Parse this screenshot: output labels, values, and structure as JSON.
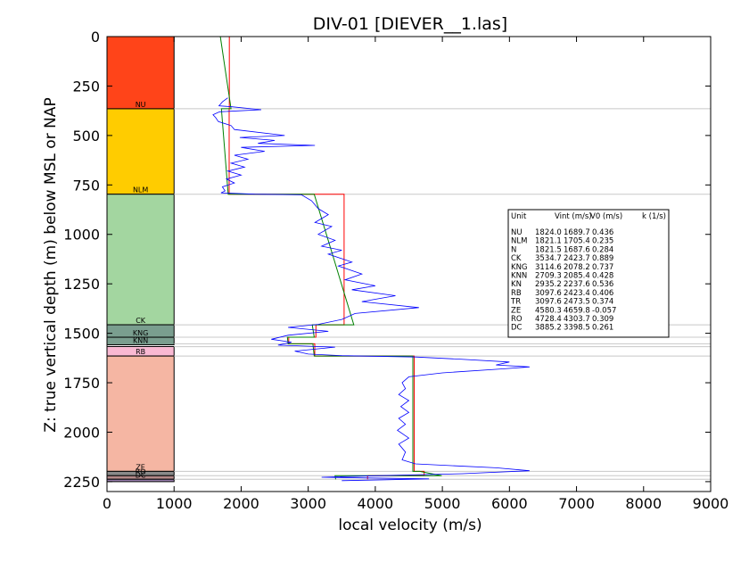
{
  "chart_data": {
    "type": "line",
    "title": "DIV-01 [DIEVER__1.las]",
    "xlabel": "local velocity (m/s)",
    "ylabel": "Z: true vertical depth (m) below MSL or NAP",
    "xlim": [
      0,
      9000
    ],
    "ylim": [
      2300,
      0
    ],
    "y_inverted": true,
    "xticks": [
      0,
      1000,
      2000,
      3000,
      4000,
      5000,
      6000,
      7000,
      8000,
      9000
    ],
    "yticks": [
      0,
      250,
      500,
      750,
      1000,
      1250,
      1500,
      1750,
      2000,
      2250
    ],
    "grid": false,
    "units": [
      {
        "name": "NU",
        "top": 0,
        "base": 365,
        "color": "#ff4419",
        "label": "NU"
      },
      {
        "name": "NLM",
        "top": 365,
        "base": 797,
        "color": "#ffcc00",
        "label": "NLM"
      },
      {
        "name": "N",
        "top": 797,
        "base": 1457,
        "color": "#a3d6a0",
        "label": "CK"
      },
      {
        "name": "CK",
        "top": 1457,
        "base": 1520,
        "color": "#7a9e8f",
        "label": "KNG"
      },
      {
        "name": "KNG",
        "top": 1520,
        "base": 1558,
        "color": "#7a9e8f",
        "label": "KNN"
      },
      {
        "name": "RB",
        "top": 1567,
        "base": 1615,
        "color": "#f9b9d3",
        "label": "RB"
      },
      {
        "name": "TR",
        "top": 1615,
        "base": 2198,
        "color": "#f5b6a3",
        "label": "ZE"
      },
      {
        "name": "ZE",
        "top": 2198,
        "base": 2220,
        "color": "#8a8a8a",
        "label": "RO"
      },
      {
        "name": "RO",
        "top": 2220,
        "base": 2238,
        "color": "#b58a8a",
        "label": "DC"
      },
      {
        "name": "DC",
        "top": 2238,
        "base": 2250,
        "color": "#9b7fb0",
        "label": ""
      }
    ],
    "horizon_depths": [
      365,
      797,
      1457,
      1520,
      1553,
      1568,
      1615,
      2198,
      2220,
      2238
    ],
    "series": [
      {
        "color": "#ff0000",
        "points": [
          [
            1824,
            0
          ],
          [
            1824,
            365
          ],
          [
            1821,
            365
          ],
          [
            1821,
            797
          ],
          [
            3535,
            797
          ],
          [
            3535,
            1457
          ],
          [
            3115,
            1457
          ],
          [
            3115,
            1520
          ],
          [
            2709,
            1520
          ],
          [
            2709,
            1553
          ],
          [
            3098,
            1553
          ],
          [
            3098,
            1615
          ],
          [
            4580,
            1615
          ],
          [
            4580,
            2198
          ],
          [
            4728,
            2198
          ],
          [
            4728,
            2220
          ],
          [
            3885,
            2220
          ],
          [
            3885,
            2238
          ]
        ]
      },
      {
        "color": "#008000",
        "points": [
          [
            1690,
            0
          ],
          [
            1849,
            365
          ],
          [
            1705,
            365
          ],
          [
            1807,
            797
          ],
          [
            3090,
            797
          ],
          [
            3680,
            1457
          ],
          [
            3060,
            1457
          ],
          [
            3090,
            1520
          ],
          [
            2690,
            1520
          ],
          [
            2700,
            1553
          ],
          [
            3070,
            1553
          ],
          [
            3090,
            1615
          ],
          [
            4560,
            1615
          ],
          [
            4560,
            2198
          ],
          [
            4660,
            2198
          ],
          [
            4990,
            2220
          ],
          [
            3400,
            2220
          ],
          [
            3410,
            2238
          ]
        ]
      },
      {
        "color": "#0000ff",
        "points": [
          [
            1800,
            310
          ],
          [
            1720,
            330
          ],
          [
            1670,
            350
          ],
          [
            1860,
            355
          ],
          [
            2300,
            370
          ],
          [
            1680,
            380
          ],
          [
            1580,
            395
          ],
          [
            1620,
            410
          ],
          [
            1660,
            430
          ],
          [
            1850,
            450
          ],
          [
            1900,
            470
          ],
          [
            2650,
            500
          ],
          [
            1980,
            510
          ],
          [
            2500,
            525
          ],
          [
            2250,
            540
          ],
          [
            3100,
            550
          ],
          [
            2000,
            560
          ],
          [
            2350,
            580
          ],
          [
            1900,
            600
          ],
          [
            2100,
            620
          ],
          [
            1850,
            640
          ],
          [
            2050,
            660
          ],
          [
            1800,
            680
          ],
          [
            2000,
            700
          ],
          [
            1780,
            720
          ],
          [
            1900,
            740
          ],
          [
            1720,
            760
          ],
          [
            1760,
            780
          ],
          [
            1700,
            790
          ],
          [
            2200,
            797
          ],
          [
            2900,
            800
          ],
          [
            3050,
            830
          ],
          [
            3150,
            870
          ],
          [
            3300,
            900
          ],
          [
            3100,
            940
          ],
          [
            3350,
            960
          ],
          [
            3150,
            1000
          ],
          [
            3400,
            1030
          ],
          [
            3200,
            1060
          ],
          [
            3500,
            1080
          ],
          [
            3300,
            1100
          ],
          [
            3650,
            1140
          ],
          [
            3450,
            1160
          ],
          [
            3800,
            1200
          ],
          [
            3550,
            1230
          ],
          [
            4000,
            1260
          ],
          [
            3650,
            1280
          ],
          [
            4300,
            1310
          ],
          [
            3800,
            1340
          ],
          [
            4650,
            1370
          ],
          [
            3700,
            1400
          ],
          [
            3500,
            1430
          ],
          [
            3150,
            1455
          ],
          [
            2700,
            1470
          ],
          [
            3300,
            1490
          ],
          [
            2700,
            1510
          ],
          [
            2450,
            1530
          ],
          [
            2750,
            1545
          ],
          [
            2550,
            1560
          ],
          [
            3400,
            1570
          ],
          [
            2800,
            1590
          ],
          [
            3000,
            1605
          ],
          [
            3500,
            1613
          ],
          [
            4600,
            1620
          ],
          [
            5200,
            1630
          ],
          [
            6000,
            1645
          ],
          [
            5800,
            1660
          ],
          [
            6300,
            1670
          ],
          [
            5900,
            1680
          ],
          [
            5000,
            1700
          ],
          [
            4500,
            1720
          ],
          [
            4400,
            1750
          ],
          [
            4450,
            1780
          ],
          [
            4350,
            1810
          ],
          [
            4500,
            1840
          ],
          [
            4380,
            1870
          ],
          [
            4500,
            1900
          ],
          [
            4350,
            1930
          ],
          [
            4450,
            1960
          ],
          [
            4330,
            1990
          ],
          [
            4500,
            2030
          ],
          [
            4350,
            2060
          ],
          [
            4450,
            2100
          ],
          [
            4400,
            2140
          ],
          [
            4600,
            2160
          ],
          [
            5800,
            2180
          ],
          [
            6300,
            2195
          ],
          [
            5300,
            2210
          ],
          [
            4000,
            2220
          ],
          [
            3200,
            2228
          ],
          [
            4800,
            2236
          ],
          [
            3500,
            2245
          ]
        ]
      }
    ],
    "table": {
      "headers": [
        "Unit",
        "Vint (m/s)",
        "V0 (m/s)",
        "k (1/s)"
      ],
      "rows": [
        [
          "NU",
          "1824.0",
          "1689.7",
          "0.436"
        ],
        [
          "NLM",
          "1821.1",
          "1705.4",
          "0.235"
        ],
        [
          "N",
          "1821.5",
          "1687.6",
          "0.284"
        ],
        [
          "CK",
          "3534.7",
          "2423.7",
          "0.889"
        ],
        [
          "KNG",
          "3114.6",
          "2078.2",
          "0.737"
        ],
        [
          "KNN",
          "2709.3",
          "2085.4",
          "0.428"
        ],
        [
          "KN",
          "2935.2",
          "2237.6",
          "0.536"
        ],
        [
          "RB",
          "3097.6",
          "2423.4",
          "0.406"
        ],
        [
          "TR",
          "3097.6",
          "2473.5",
          "0.374"
        ],
        [
          "ZE",
          "4580.3",
          "4659.8",
          "-0.057"
        ],
        [
          "RO",
          "4728.4",
          "4303.7",
          "0.309"
        ],
        [
          "DC",
          "3885.2",
          "3398.5",
          "0.261"
        ]
      ]
    }
  }
}
